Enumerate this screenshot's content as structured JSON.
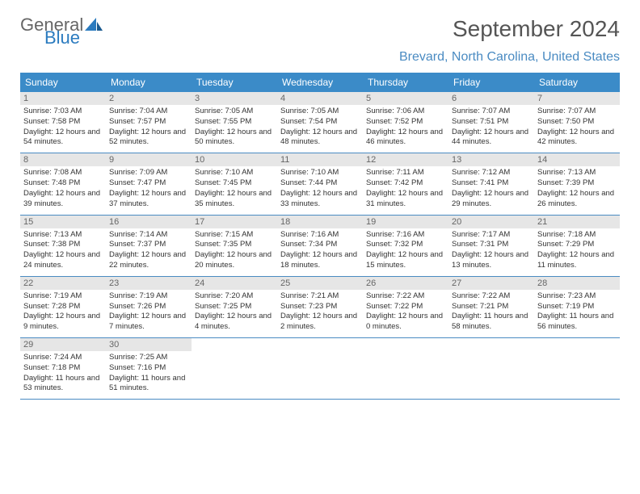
{
  "logo": {
    "part1": "General",
    "part2": "Blue"
  },
  "title": "September 2024",
  "subtitle": "Brevard, North Carolina, United States",
  "colors": {
    "header_bg": "#3b8bc8",
    "header_fg": "#ffffff",
    "row_border": "#4a8bc2",
    "daynum_bg": "#e6e6e6",
    "daynum_fg": "#666666",
    "body_text": "#333333",
    "title_color": "#555555",
    "subtitle_color": "#4a8bc2",
    "logo_gray": "#666666",
    "logo_blue": "#2b7bbf"
  },
  "weekdays": [
    "Sunday",
    "Monday",
    "Tuesday",
    "Wednesday",
    "Thursday",
    "Friday",
    "Saturday"
  ],
  "days": [
    {
      "n": "1",
      "sr": "7:03 AM",
      "ss": "7:58 PM",
      "dl": "12 hours and 54 minutes."
    },
    {
      "n": "2",
      "sr": "7:04 AM",
      "ss": "7:57 PM",
      "dl": "12 hours and 52 minutes."
    },
    {
      "n": "3",
      "sr": "7:05 AM",
      "ss": "7:55 PM",
      "dl": "12 hours and 50 minutes."
    },
    {
      "n": "4",
      "sr": "7:05 AM",
      "ss": "7:54 PM",
      "dl": "12 hours and 48 minutes."
    },
    {
      "n": "5",
      "sr": "7:06 AM",
      "ss": "7:52 PM",
      "dl": "12 hours and 46 minutes."
    },
    {
      "n": "6",
      "sr": "7:07 AM",
      "ss": "7:51 PM",
      "dl": "12 hours and 44 minutes."
    },
    {
      "n": "7",
      "sr": "7:07 AM",
      "ss": "7:50 PM",
      "dl": "12 hours and 42 minutes."
    },
    {
      "n": "8",
      "sr": "7:08 AM",
      "ss": "7:48 PM",
      "dl": "12 hours and 39 minutes."
    },
    {
      "n": "9",
      "sr": "7:09 AM",
      "ss": "7:47 PM",
      "dl": "12 hours and 37 minutes."
    },
    {
      "n": "10",
      "sr": "7:10 AM",
      "ss": "7:45 PM",
      "dl": "12 hours and 35 minutes."
    },
    {
      "n": "11",
      "sr": "7:10 AM",
      "ss": "7:44 PM",
      "dl": "12 hours and 33 minutes."
    },
    {
      "n": "12",
      "sr": "7:11 AM",
      "ss": "7:42 PM",
      "dl": "12 hours and 31 minutes."
    },
    {
      "n": "13",
      "sr": "7:12 AM",
      "ss": "7:41 PM",
      "dl": "12 hours and 29 minutes."
    },
    {
      "n": "14",
      "sr": "7:13 AM",
      "ss": "7:39 PM",
      "dl": "12 hours and 26 minutes."
    },
    {
      "n": "15",
      "sr": "7:13 AM",
      "ss": "7:38 PM",
      "dl": "12 hours and 24 minutes."
    },
    {
      "n": "16",
      "sr": "7:14 AM",
      "ss": "7:37 PM",
      "dl": "12 hours and 22 minutes."
    },
    {
      "n": "17",
      "sr": "7:15 AM",
      "ss": "7:35 PM",
      "dl": "12 hours and 20 minutes."
    },
    {
      "n": "18",
      "sr": "7:16 AM",
      "ss": "7:34 PM",
      "dl": "12 hours and 18 minutes."
    },
    {
      "n": "19",
      "sr": "7:16 AM",
      "ss": "7:32 PM",
      "dl": "12 hours and 15 minutes."
    },
    {
      "n": "20",
      "sr": "7:17 AM",
      "ss": "7:31 PM",
      "dl": "12 hours and 13 minutes."
    },
    {
      "n": "21",
      "sr": "7:18 AM",
      "ss": "7:29 PM",
      "dl": "12 hours and 11 minutes."
    },
    {
      "n": "22",
      "sr": "7:19 AM",
      "ss": "7:28 PM",
      "dl": "12 hours and 9 minutes."
    },
    {
      "n": "23",
      "sr": "7:19 AM",
      "ss": "7:26 PM",
      "dl": "12 hours and 7 minutes."
    },
    {
      "n": "24",
      "sr": "7:20 AM",
      "ss": "7:25 PM",
      "dl": "12 hours and 4 minutes."
    },
    {
      "n": "25",
      "sr": "7:21 AM",
      "ss": "7:23 PM",
      "dl": "12 hours and 2 minutes."
    },
    {
      "n": "26",
      "sr": "7:22 AM",
      "ss": "7:22 PM",
      "dl": "12 hours and 0 minutes."
    },
    {
      "n": "27",
      "sr": "7:22 AM",
      "ss": "7:21 PM",
      "dl": "11 hours and 58 minutes."
    },
    {
      "n": "28",
      "sr": "7:23 AM",
      "ss": "7:19 PM",
      "dl": "11 hours and 56 minutes."
    },
    {
      "n": "29",
      "sr": "7:24 AM",
      "ss": "7:18 PM",
      "dl": "11 hours and 53 minutes."
    },
    {
      "n": "30",
      "sr": "7:25 AM",
      "ss": "7:16 PM",
      "dl": "11 hours and 51 minutes."
    }
  ],
  "labels": {
    "sunrise": "Sunrise:",
    "sunset": "Sunset:",
    "daylight": "Daylight:"
  },
  "layout": {
    "cols": 7,
    "start_offset": 0,
    "total_cells": 35
  }
}
